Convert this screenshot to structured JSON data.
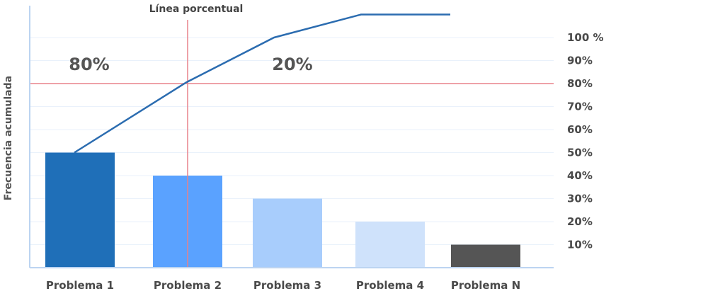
{
  "chart_data": {
    "type": "bar",
    "title": "",
    "xlabel": "",
    "ylabel": "Frecuencia acumulada",
    "categories": [
      "Problema 1",
      "Problema 2",
      "Problema 3",
      "Problema 4",
      "Problema N"
    ],
    "series": [
      {
        "type": "bar",
        "values": [
          50,
          40,
          30,
          20,
          10
        ],
        "colors": [
          "#1f6fb8",
          "#5aa2ff",
          "#a8cdfc",
          "#cfe2fb",
          "#555555"
        ]
      },
      {
        "type": "line",
        "values": [
          50,
          80.5,
          100,
          110,
          110
        ],
        "color": "#2b6cb0"
      }
    ],
    "y_ticks": [
      "10%",
      "20%",
      "30%",
      "40%",
      "50%",
      "60%",
      "70%",
      "80%",
      "90%",
      "100 %"
    ],
    "ylim": [
      0,
      110
    ],
    "grid": true,
    "y_axis_side": "right",
    "reference_lines": [
      {
        "orientation": "horizontal",
        "value": 80,
        "color": "#e8828c"
      },
      {
        "orientation": "vertical",
        "category": "Problema 2",
        "label": "Línea porcentual",
        "color": "#e8828c"
      }
    ],
    "annotations": [
      {
        "text": "80%",
        "region": "left"
      },
      {
        "text": "20%",
        "region": "right"
      }
    ]
  }
}
